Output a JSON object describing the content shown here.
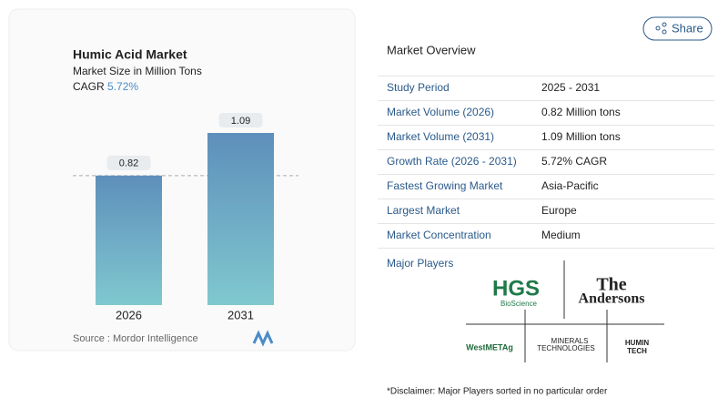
{
  "chart_data": {
    "type": "bar",
    "title": "Humic Acid Market",
    "subtitle": "Market Size in Million Tons",
    "cagr_label": "CAGR",
    "cagr_value": "5.72%",
    "categories": [
      "2026",
      "2031"
    ],
    "values": [
      0.82,
      1.09
    ],
    "source": "Source :  Mordor Intelligence"
  },
  "share": "Share",
  "market_overview": {
    "title": "Market Overview",
    "rows": [
      [
        "Study Period",
        "2025 - 2031"
      ],
      [
        "Market Volume (2026)",
        "0.82 Million tons"
      ],
      [
        "Market Volume (2031)",
        "1.09 Million tons"
      ],
      [
        "Growth Rate (2026 - 2031)",
        "5.72% CAGR"
      ],
      [
        "Fastest Growing Market",
        "Asia-Pacific"
      ],
      [
        "Largest Market",
        "Europe"
      ],
      [
        "Market Concentration",
        "Medium"
      ]
    ]
  },
  "major_players": {
    "title": "Major Players",
    "players": [
      [
        "HGS",
        "BioScience"
      ],
      [
        "The",
        "Andersons"
      ],
      [
        "WestMETAg"
      ],
      [
        "MINERALS",
        "TECHNOLOGIES"
      ],
      [
        "HUMIN",
        "TECH"
      ]
    ]
  },
  "disclaimer": "*Disclaimer: Major Players sorted in no particular order"
}
